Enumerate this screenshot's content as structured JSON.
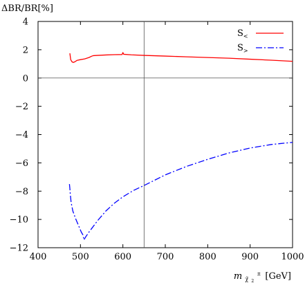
{
  "chart_data": {
    "type": "line",
    "ylabel": "ΔBR/BR[%]",
    "xlabel": {
      "symbol": "m",
      "subscript": "χ̃",
      "subsubscript": "2",
      "superscript": "±",
      "unit": "[GeV]"
    },
    "xlim": [
      400,
      1000
    ],
    "ylim": [
      -12,
      4
    ],
    "xticks": [
      400,
      500,
      600,
      700,
      800,
      900,
      1000
    ],
    "yticks": [
      -12,
      -10,
      -8,
      -6,
      -4,
      -2,
      0,
      2,
      4
    ],
    "zero_line": 0,
    "vertical_line_x": 650,
    "grid": false,
    "legend": "top-right",
    "series": [
      {
        "name": "S<",
        "label_main": "S",
        "label_sub": "<",
        "color": "#ff0000",
        "dash": "solid",
        "points": [
          [
            475,
            1.75
          ],
          [
            477,
            1.3
          ],
          [
            480,
            1.15
          ],
          [
            483,
            1.1
          ],
          [
            487,
            1.15
          ],
          [
            492,
            1.25
          ],
          [
            500,
            1.3
          ],
          [
            510,
            1.35
          ],
          [
            520,
            1.45
          ],
          [
            527,
            1.55
          ],
          [
            530,
            1.58
          ],
          [
            540,
            1.6
          ],
          [
            560,
            1.63
          ],
          [
            580,
            1.65
          ],
          [
            598,
            1.66
          ],
          [
            600,
            1.8
          ],
          [
            602,
            1.68
          ],
          [
            620,
            1.64
          ],
          [
            650,
            1.6
          ],
          [
            700,
            1.55
          ],
          [
            750,
            1.5
          ],
          [
            800,
            1.45
          ],
          [
            850,
            1.4
          ],
          [
            900,
            1.33
          ],
          [
            950,
            1.26
          ],
          [
            1000,
            1.18
          ]
        ]
      },
      {
        "name": "S>",
        "label_main": "S",
        "label_sub": ">",
        "color": "#0000ff",
        "dash": "dashdot",
        "points": [
          [
            474,
            -7.5
          ],
          [
            475,
            -7.8
          ],
          [
            476,
            -8.2
          ],
          [
            478,
            -8.8
          ],
          [
            482,
            -9.4
          ],
          [
            488,
            -9.9
          ],
          [
            495,
            -10.4
          ],
          [
            502,
            -10.9
          ],
          [
            506,
            -11.1
          ],
          [
            508,
            -11.45
          ],
          [
            512,
            -11.25
          ],
          [
            520,
            -10.9
          ],
          [
            540,
            -10.1
          ],
          [
            560,
            -9.4
          ],
          [
            580,
            -8.85
          ],
          [
            600,
            -8.4
          ],
          [
            625,
            -7.95
          ],
          [
            650,
            -7.6
          ],
          [
            700,
            -6.85
          ],
          [
            750,
            -6.25
          ],
          [
            800,
            -5.75
          ],
          [
            850,
            -5.3
          ],
          [
            900,
            -4.95
          ],
          [
            950,
            -4.7
          ],
          [
            1000,
            -4.55
          ]
        ]
      }
    ]
  }
}
